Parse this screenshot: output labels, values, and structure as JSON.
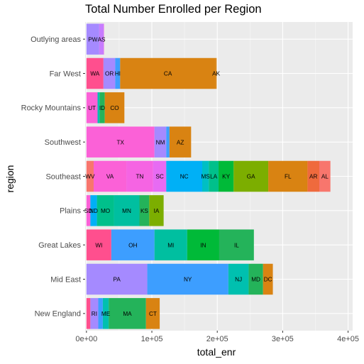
{
  "chart_data": {
    "type": "bar",
    "orientation": "horizontal",
    "stacked": true,
    "title": "Total Number Enrolled per Region",
    "xlabel": "total_enr",
    "ylabel": "region",
    "xlim": [
      -2000,
      407000
    ],
    "x_ticks": [
      {
        "value": 0,
        "label": "0e+00"
      },
      {
        "value": 100000,
        "label": "1e+05"
      },
      {
        "value": 200000,
        "label": "2e+05"
      },
      {
        "value": 300000,
        "label": "3e+05"
      },
      {
        "value": 400000,
        "label": "4e+05"
      }
    ],
    "grid": true,
    "legend": "none",
    "categories": [
      "Outlying areas",
      "Far West",
      "Rocky Mountains",
      "Southwest",
      "Southeast",
      "Plains",
      "Great Lakes",
      "Mid East",
      "New England"
    ],
    "bars": [
      {
        "region": "Outlying areas",
        "segments": [
          {
            "state": "PW",
            "value": 19500,
            "color": "#A58AFF",
            "show_label": true
          },
          {
            "state": "AS",
            "value": 7000,
            "color": "#C77CFF",
            "show_label": true
          },
          {
            "state": "",
            "value": 400,
            "color": "#FB61D7",
            "show_label": false
          }
        ]
      },
      {
        "region": "Far West",
        "segments": [
          {
            "state": "WA",
            "value": 26000,
            "color": "#FF4F8E",
            "show_label": true
          },
          {
            "state": "OR",
            "value": 18000,
            "color": "#A58AFF",
            "show_label": true
          },
          {
            "state": "HI",
            "value": 7500,
            "color": "#3D9EFF",
            "show_label": true
          },
          {
            "state": "CA",
            "value": 146000,
            "color": "#D98312",
            "show_label": true
          },
          {
            "state": "AK",
            "value": 1500,
            "color": "#D98312",
            "show_label": true
          }
        ]
      },
      {
        "region": "Rocky Mountains",
        "segments": [
          {
            "state": "UT",
            "value": 17000,
            "color": "#FB61D7",
            "show_label": true
          },
          {
            "state": "",
            "value": 3000,
            "color": "#00C0AF",
            "show_label": false
          },
          {
            "state": "ID",
            "value": 8000,
            "color": "#24B35A",
            "show_label": true
          },
          {
            "state": "CO",
            "value": 30000,
            "color": "#D98312",
            "show_label": true
          }
        ]
      },
      {
        "region": "Southwest",
        "segments": [
          {
            "state": "TX",
            "value": 104000,
            "color": "#FB61D7",
            "show_label": true
          },
          {
            "state": "NM",
            "value": 18000,
            "color": "#A58AFF",
            "show_label": true
          },
          {
            "state": "",
            "value": 5000,
            "color": "#3D9EFF",
            "show_label": false
          },
          {
            "state": "AZ",
            "value": 33000,
            "color": "#D98312",
            "show_label": true
          }
        ]
      },
      {
        "region": "Southeast",
        "segments": [
          {
            "state": "WV",
            "value": 11000,
            "color": "#F8766D",
            "show_label": true
          },
          {
            "state": "VA",
            "value": 50000,
            "color": "#FB61D7",
            "show_label": true
          },
          {
            "state": "TN",
            "value": 41000,
            "color": "#F564E3",
            "show_label": true
          },
          {
            "state": "SC",
            "value": 20000,
            "color": "#E76BF3",
            "show_label": true
          },
          {
            "state": "NC",
            "value": 55000,
            "color": "#00B0F6",
            "show_label": true
          },
          {
            "state": "MS",
            "value": 10000,
            "color": "#00BFC4",
            "show_label": true
          },
          {
            "state": "LA",
            "value": 15000,
            "color": "#00C08B",
            "show_label": true
          },
          {
            "state": "KY",
            "value": 23000,
            "color": "#00BA38",
            "show_label": true
          },
          {
            "state": "GA",
            "value": 53000,
            "color": "#7CAE00",
            "show_label": true
          },
          {
            "state": "FL",
            "value": 60000,
            "color": "#D98312",
            "show_label": true
          },
          {
            "state": "AR",
            "value": 18000,
            "color": "#EF6A3D",
            "show_label": true
          },
          {
            "state": "AL",
            "value": 17000,
            "color": "#F8766D",
            "show_label": true
          }
        ]
      },
      {
        "region": "Plains",
        "segments": [
          {
            "state": "SD",
            "value": 6000,
            "color": "#FB61D7",
            "show_label": true
          },
          {
            "state": "ND",
            "value": 10000,
            "color": "#00B0F6",
            "show_label": true
          },
          {
            "state": "MO",
            "value": 26000,
            "color": "#00C08B",
            "show_label": true
          },
          {
            "state": "MN",
            "value": 39000,
            "color": "#00BFA0",
            "show_label": true
          },
          {
            "state": "KS",
            "value": 15000,
            "color": "#24B35A",
            "show_label": true
          },
          {
            "state": "IA",
            "value": 22000,
            "color": "#7CAE00",
            "show_label": true
          }
        ]
      },
      {
        "region": "Great Lakes",
        "segments": [
          {
            "state": "WI",
            "value": 38000,
            "color": "#FF4F8E",
            "show_label": true
          },
          {
            "state": "OH",
            "value": 66000,
            "color": "#3D9EFF",
            "show_label": true
          },
          {
            "state": "MI",
            "value": 50000,
            "color": "#00BFA0",
            "show_label": true
          },
          {
            "state": "IN",
            "value": 49000,
            "color": "#00BA38",
            "show_label": true
          },
          {
            "state": "IL",
            "value": 53000,
            "color": "#24B35A",
            "show_label": true
          }
        ]
      },
      {
        "region": "Mid East",
        "segments": [
          {
            "state": "PA",
            "value": 93000,
            "color": "#A58AFF",
            "show_label": true
          },
          {
            "state": "NY",
            "value": 124000,
            "color": "#3D9EFF",
            "show_label": true
          },
          {
            "state": "NJ",
            "value": 31000,
            "color": "#00C0AF",
            "show_label": true
          },
          {
            "state": "MD",
            "value": 22000,
            "color": "#24B35A",
            "show_label": true
          },
          {
            "state": "DC",
            "value": 15000,
            "color": "#D98312",
            "show_label": true
          }
        ]
      },
      {
        "region": "New England",
        "segments": [
          {
            "state": "",
            "value": 6000,
            "color": "#FF4F8E",
            "show_label": false
          },
          {
            "state": "RI",
            "value": 12000,
            "color": "#A58AFF",
            "show_label": true
          },
          {
            "state": "",
            "value": 7000,
            "color": "#3D9EFF",
            "show_label": false
          },
          {
            "state": "ME",
            "value": 9000,
            "color": "#00C0AF",
            "show_label": true
          },
          {
            "state": "MA",
            "value": 57000,
            "color": "#24B35A",
            "show_label": true
          },
          {
            "state": "CT",
            "value": 21000,
            "color": "#D98312",
            "show_label": true
          }
        ]
      }
    ]
  }
}
